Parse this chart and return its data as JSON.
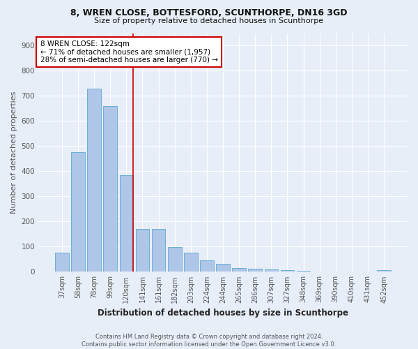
{
  "title1": "8, WREN CLOSE, BOTTESFORD, SCUNTHORPE, DN16 3GD",
  "title2": "Size of property relative to detached houses in Scunthorpe",
  "xlabel": "Distribution of detached houses by size in Scunthorpe",
  "ylabel": "Number of detached properties",
  "footer1": "Contains HM Land Registry data © Crown copyright and database right 2024.",
  "footer2": "Contains public sector information licensed under the Open Government Licence v3.0.",
  "bar_labels": [
    "37sqm",
    "58sqm",
    "78sqm",
    "99sqm",
    "120sqm",
    "141sqm",
    "161sqm",
    "182sqm",
    "203sqm",
    "224sqm",
    "244sqm",
    "265sqm",
    "286sqm",
    "307sqm",
    "327sqm",
    "348sqm",
    "369sqm",
    "390sqm",
    "410sqm",
    "431sqm",
    "452sqm"
  ],
  "bar_values": [
    75,
    475,
    730,
    660,
    385,
    170,
    170,
    98,
    75,
    45,
    32,
    15,
    13,
    10,
    7,
    5,
    0,
    0,
    0,
    0,
    8
  ],
  "bar_color": "#aec6e8",
  "bar_edge_color": "#6baed6",
  "bg_color": "#e8eef8",
  "annotation_line1": "8 WREN CLOSE: 122sqm",
  "annotation_line2": "← 71% of detached houses are smaller (1,957)",
  "annotation_line3": "28% of semi-detached houses are larger (770) →",
  "vline_color": "#cc0000",
  "annotation_box_color": "#ffffff",
  "annotation_box_edge": "#cc0000",
  "ylim": [
    0,
    950
  ],
  "yticks": [
    0,
    100,
    200,
    300,
    400,
    500,
    600,
    700,
    800,
    900
  ],
  "grid_color": "#ffffff",
  "tick_color": "#555555",
  "title1_fontsize": 9,
  "title2_fontsize": 8,
  "ylabel_fontsize": 8,
  "xlabel_fontsize": 8.5,
  "footer_fontsize": 6,
  "annot_fontsize": 7.5,
  "xtick_fontsize": 7,
  "ytick_fontsize": 7.5
}
